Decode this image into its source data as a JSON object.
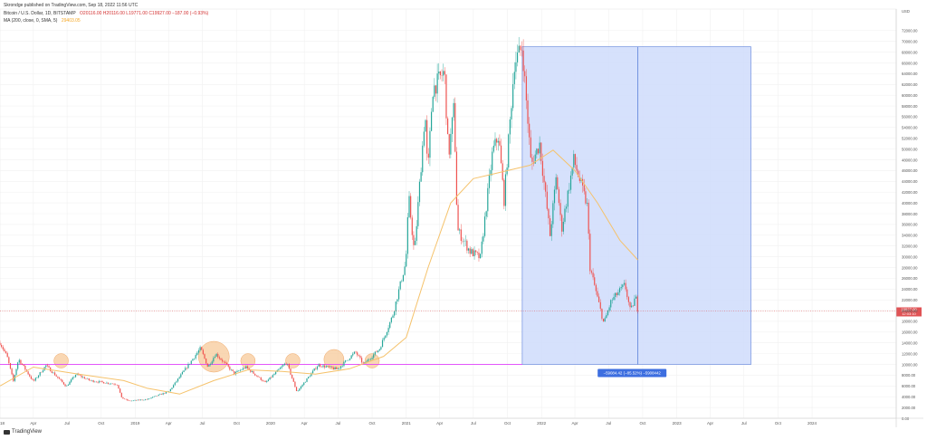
{
  "header": {
    "publisher": "Skrondge published on TradingView.com, Sep 18, 2022 11:56 UTC",
    "symbol": "Bitcoin / U.S. Dollar, 1D, BITSTAMP",
    "ohlc": "O20116.00 H20116.00 L19771.00 C19927.00 −187.00 (−0.93%)",
    "ma_label": "MA (200, close, 0, SMA, 5)",
    "ma_value": "29403.05"
  },
  "footer": {
    "brand": "TradingView"
  },
  "colors": {
    "up": "#26a69a",
    "down": "#ef5350",
    "ma": "#f5c26b",
    "range_fill": "#cfdcfb",
    "range_stroke": "#5b7fd9",
    "support": "#e040fb",
    "circle": "#f7c99a",
    "price_tag": "#e05355",
    "measure_tag": "#3d6ee0"
  },
  "chart_data": {
    "type": "candlestick",
    "symbol": "BTCUSD",
    "x_range": [
      "2018-01-01",
      "2024-08-15"
    ],
    "y_range": [
      0,
      76000
    ],
    "x_ticks": [
      "2018",
      "Apr",
      "Jul",
      "Oct",
      "2019",
      "Apr",
      "Jul",
      "Oct",
      "2020",
      "Apr",
      "Jul",
      "Oct",
      "2021",
      "Apr",
      "Jul",
      "Oct",
      "2022",
      "Apr",
      "Jul",
      "Oct",
      "2023",
      "Apr",
      "Jul",
      "Oct",
      "2024"
    ],
    "y_ticks": [
      "0.00",
      "2000.00",
      "4000.00",
      "6000.00",
      "8000.00",
      "10000.00",
      "12000.00",
      "14000.00",
      "16000.00",
      "18000.00",
      "20000.00",
      "22000.00",
      "24000.00",
      "26000.00",
      "28000.00",
      "30000.00",
      "32000.00",
      "34000.00",
      "36000.00",
      "38000.00",
      "40000.00",
      "42000.00",
      "44000.00",
      "46000.00",
      "48000.00",
      "50000.00",
      "52000.00",
      "54000.00",
      "56000.00",
      "58000.00",
      "60000.00",
      "62000.00",
      "64000.00",
      "66000.00",
      "68000.00",
      "70000.00",
      "72000.00",
      "USD"
    ],
    "price_path": [
      [
        "2018-01-01",
        14000
      ],
      [
        "2018-01-20",
        11500
      ],
      [
        "2018-02-06",
        6900
      ],
      [
        "2018-02-20",
        11000
      ],
      [
        "2018-04-01",
        6800
      ],
      [
        "2018-05-05",
        9800
      ],
      [
        "2018-06-29",
        5900
      ],
      [
        "2018-07-25",
        8200
      ],
      [
        "2018-09-01",
        7000
      ],
      [
        "2018-11-14",
        6300
      ],
      [
        "2018-11-25",
        3800
      ],
      [
        "2018-12-15",
        3200
      ],
      [
        "2019-02-01",
        3500
      ],
      [
        "2019-04-02",
        5000
      ],
      [
        "2019-06-26",
        13000
      ],
      [
        "2019-07-16",
        9500
      ],
      [
        "2019-08-06",
        12000
      ],
      [
        "2019-09-25",
        8300
      ],
      [
        "2019-10-26",
        9500
      ],
      [
        "2019-12-18",
        6600
      ],
      [
        "2020-02-13",
        10400
      ],
      [
        "2020-03-12",
        4900
      ],
      [
        "2020-05-08",
        9900
      ],
      [
        "2020-06-30",
        9100
      ],
      [
        "2020-07-28",
        11000
      ],
      [
        "2020-08-17",
        12300
      ],
      [
        "2020-09-08",
        10000
      ],
      [
        "2020-10-21",
        12900
      ],
      [
        "2020-11-25",
        19000
      ],
      [
        "2020-12-31",
        29000
      ],
      [
        "2021-01-08",
        41000
      ],
      [
        "2021-01-23",
        30500
      ],
      [
        "2021-02-21",
        57000
      ],
      [
        "2021-02-28",
        45000
      ],
      [
        "2021-03-13",
        61000
      ],
      [
        "2021-04-14",
        64500
      ],
      [
        "2021-04-25",
        48500
      ],
      [
        "2021-05-10",
        58000
      ],
      [
        "2021-05-19",
        35000
      ],
      [
        "2021-06-22",
        31000
      ],
      [
        "2021-07-20",
        29800
      ],
      [
        "2021-08-22",
        49500
      ],
      [
        "2021-09-07",
        52500
      ],
      [
        "2021-09-22",
        40500
      ],
      [
        "2021-10-20",
        66000
      ],
      [
        "2021-11-10",
        69000
      ],
      [
        "2021-12-04",
        47000
      ],
      [
        "2021-12-27",
        51000
      ],
      [
        "2022-01-24",
        34000
      ],
      [
        "2022-02-10",
        45000
      ],
      [
        "2022-02-24",
        35000
      ],
      [
        "2022-03-29",
        48000
      ],
      [
        "2022-05-04",
        39500
      ],
      [
        "2022-05-12",
        28000
      ],
      [
        "2022-06-18",
        17600
      ],
      [
        "2022-07-08",
        21800
      ],
      [
        "2022-08-14",
        24800
      ],
      [
        "2022-08-29",
        19800
      ],
      [
        "2022-09-12",
        22600
      ],
      [
        "2022-09-18",
        19927
      ]
    ],
    "ma_200": [
      [
        "2018-01-01",
        6000
      ],
      [
        "2018-04-01",
        9500
      ],
      [
        "2018-08-01",
        8200
      ],
      [
        "2018-12-01",
        7000
      ],
      [
        "2019-02-01",
        5600
      ],
      [
        "2019-05-01",
        4500
      ],
      [
        "2019-08-01",
        7000
      ],
      [
        "2019-11-01",
        9000
      ],
      [
        "2020-02-01",
        8700
      ],
      [
        "2020-05-01",
        8200
      ],
      [
        "2020-08-01",
        9200
      ],
      [
        "2020-11-01",
        11500
      ],
      [
        "2021-01-01",
        15000
      ],
      [
        "2021-03-01",
        28000
      ],
      [
        "2021-05-01",
        40000
      ],
      [
        "2021-07-01",
        44500
      ],
      [
        "2021-09-01",
        45500
      ],
      [
        "2021-12-01",
        47000
      ],
      [
        "2022-02-01",
        49800
      ],
      [
        "2022-04-01",
        46000
      ],
      [
        "2022-06-01",
        40000
      ],
      [
        "2022-08-01",
        33000
      ],
      [
        "2022-09-18",
        29403
      ]
    ],
    "support_level": 10000,
    "range_box": {
      "x_start": "2021-11-10",
      "x_end": "2023-07-20",
      "y_top": 69000,
      "y_bottom": 10000,
      "divider": "2022-09-18"
    },
    "measure_label": "−59084.42 (−85.52%) −5908442",
    "circled_bottoms": [
      {
        "date": "2018-06-15",
        "price": 10000,
        "size": "small"
      },
      {
        "date": "2019-08-01",
        "price": 10000,
        "size": "large"
      },
      {
        "date": "2019-11-01",
        "price": 10000,
        "size": "small"
      },
      {
        "date": "2020-03-01",
        "price": 10000,
        "size": "small"
      },
      {
        "date": "2020-06-20",
        "price": 10000,
        "size": "medium"
      },
      {
        "date": "2020-10-01",
        "price": 10000,
        "size": "small"
      }
    ],
    "last_price": {
      "value": "19927.00",
      "countdown": "12:03:10"
    },
    "grid": true
  }
}
